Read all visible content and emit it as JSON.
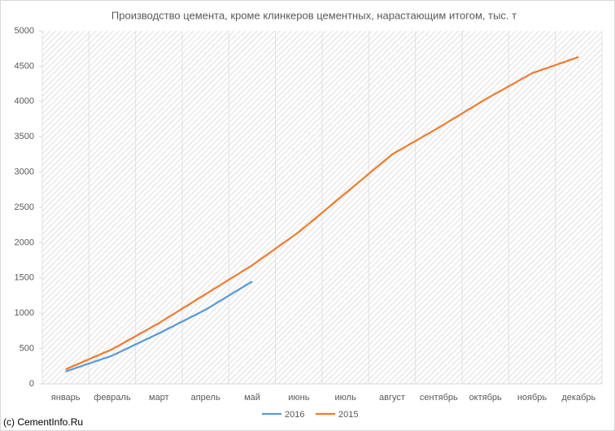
{
  "chart_data": {
    "type": "line",
    "title": "Производство цемента, кроме клинкеров цементных, нарастающим итогом, тыс. т",
    "categories": [
      "январь",
      "февраль",
      "март",
      "апрель",
      "май",
      "июнь",
      "июль",
      "август",
      "сентябрь",
      "октябрь",
      "ноябрь",
      "декабрь"
    ],
    "series": [
      {
        "name": "2016",
        "color": "#5b9bd5",
        "values": [
          175,
          400,
          715,
          1050,
          1450,
          null,
          null,
          null,
          null,
          null,
          null,
          null
        ]
      },
      {
        "name": "2015",
        "color": "#ed7d31",
        "values": [
          205,
          490,
          860,
          1270,
          1680,
          2150,
          2700,
          3250,
          3630,
          4030,
          4400,
          4630
        ]
      }
    ],
    "ylim": [
      0,
      5000
    ],
    "yticks": [
      0,
      500,
      1000,
      1500,
      2000,
      2500,
      3000,
      3500,
      4000,
      4500,
      5000
    ],
    "legend": "bottom",
    "credit": "(c) CementInfo.Ru"
  }
}
